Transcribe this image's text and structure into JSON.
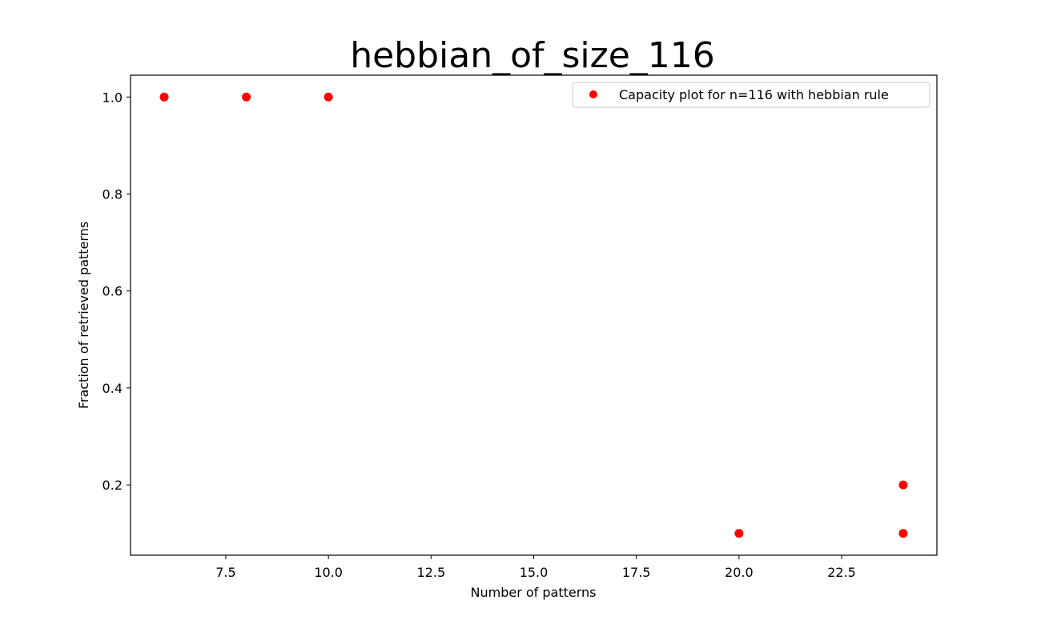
{
  "chart_data": {
    "type": "scatter",
    "title": "hebbian_of_size_116",
    "xlabel": "Number of patterns",
    "ylabel": "Fraction of retrieved patterns",
    "xlim": [
      5.18,
      24.82
    ],
    "ylim": [
      0.055,
      1.045
    ],
    "xticks": [
      7.5,
      10.0,
      12.5,
      15.0,
      17.5,
      20.0,
      22.5
    ],
    "xtick_labels": [
      "7.5",
      "10.0",
      "12.5",
      "15.0",
      "17.5",
      "20.0",
      "22.5"
    ],
    "yticks": [
      0.2,
      0.4,
      0.6,
      0.8,
      1.0
    ],
    "ytick_labels": [
      "0.2",
      "0.4",
      "0.6",
      "0.8",
      "1.0"
    ],
    "grid": false,
    "legend_position": "upper right",
    "series": [
      {
        "name": "Capacity plot for n=116 with hebbian rule",
        "color": "#ff0000",
        "marker": "circle",
        "points": [
          {
            "x": 6,
            "y": 1.0
          },
          {
            "x": 8,
            "y": 1.0
          },
          {
            "x": 10,
            "y": 1.0
          },
          {
            "x": 20,
            "y": 0.1
          },
          {
            "x": 24,
            "y": 0.2
          },
          {
            "x": 24,
            "y": 0.1
          }
        ]
      }
    ]
  }
}
